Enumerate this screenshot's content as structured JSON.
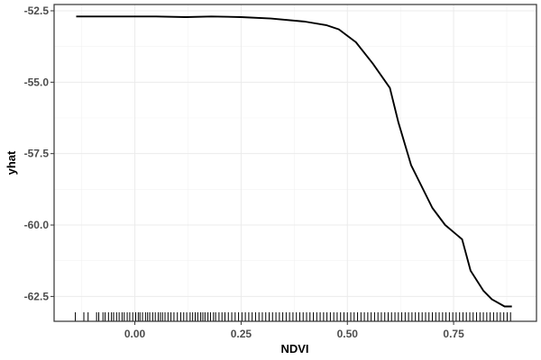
{
  "chart_data": {
    "type": "line",
    "xlabel": "NDVI",
    "ylabel": "yhat",
    "xlim": [
      -0.19,
      0.945
    ],
    "ylim": [
      -63.37,
      -52.28
    ],
    "x_ticks": [
      0.0,
      0.25,
      0.5,
      0.75
    ],
    "x_tick_labels": [
      "0.00",
      "0.25",
      "0.50",
      "0.75"
    ],
    "y_ticks": [
      -52.5,
      -55.0,
      -57.5,
      -60.0,
      -62.5
    ],
    "y_tick_labels": [
      "-52.5",
      "-55.0",
      "-57.5",
      "-60.0",
      "-62.5"
    ],
    "grid": true,
    "series": [
      {
        "line_color": "#000000",
        "x": [
          -0.138,
          -0.05,
          0.05,
          0.12,
          0.18,
          0.25,
          0.32,
          0.4,
          0.45,
          0.48,
          0.52,
          0.56,
          0.6,
          0.62,
          0.65,
          0.7,
          0.73,
          0.77,
          0.79,
          0.82,
          0.84,
          0.87,
          0.887
        ],
        "y": [
          -52.7,
          -52.7,
          -52.7,
          -52.72,
          -52.7,
          -52.72,
          -52.77,
          -52.88,
          -53.0,
          -53.15,
          -53.6,
          -54.35,
          -55.2,
          -56.4,
          -57.9,
          -59.4,
          -60.0,
          -60.5,
          -61.6,
          -62.3,
          -62.6,
          -62.85,
          -62.85
        ]
      }
    ],
    "rug": {
      "axis": "x",
      "x": [
        -0.14,
        -0.12,
        -0.11,
        -0.09,
        -0.085,
        -0.075,
        -0.07,
        -0.062,
        -0.055,
        -0.05,
        -0.043,
        -0.037,
        -0.03,
        -0.025,
        -0.018,
        -0.012,
        -0.005,
        0.002,
        0.008,
        0.012,
        0.018,
        0.025,
        0.03,
        0.035,
        0.042,
        0.048,
        0.055,
        0.06,
        0.065,
        0.071,
        0.078,
        0.085,
        0.092,
        0.1,
        0.108,
        0.115,
        0.122,
        0.13,
        0.136,
        0.142,
        0.148,
        0.155,
        0.16,
        0.165,
        0.172,
        0.178,
        0.185,
        0.19,
        0.198,
        0.205,
        0.212,
        0.22,
        0.228,
        0.236,
        0.244,
        0.252,
        0.26,
        0.268,
        0.276,
        0.284,
        0.292,
        0.3,
        0.308,
        0.316,
        0.324,
        0.332,
        0.34,
        0.348,
        0.356,
        0.364,
        0.372,
        0.38,
        0.388,
        0.396,
        0.404,
        0.412,
        0.42,
        0.428,
        0.436,
        0.444,
        0.452,
        0.46,
        0.468,
        0.476,
        0.484,
        0.492,
        0.5,
        0.508,
        0.516,
        0.524,
        0.532,
        0.54,
        0.548,
        0.556,
        0.564,
        0.572,
        0.58,
        0.588,
        0.596,
        0.604,
        0.612,
        0.62,
        0.628,
        0.636,
        0.644,
        0.652,
        0.66,
        0.668,
        0.676,
        0.684,
        0.692,
        0.7,
        0.708,
        0.716,
        0.724,
        0.732,
        0.74,
        0.748,
        0.756,
        0.764,
        0.772,
        0.78,
        0.788,
        0.796,
        0.804,
        0.812,
        0.82,
        0.828,
        0.836,
        0.844,
        0.852,
        0.86,
        0.868,
        0.876,
        0.884
      ]
    }
  }
}
